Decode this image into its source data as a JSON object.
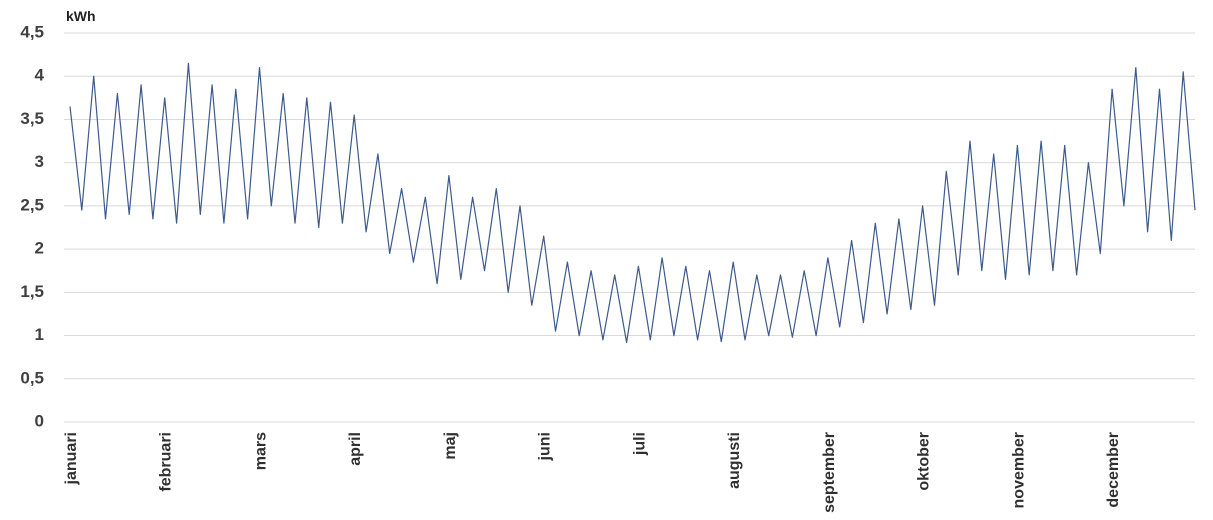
{
  "chart_data": {
    "type": "line",
    "unit_label": "kWh",
    "categories": [
      "januari",
      null,
      null,
      null,
      null,
      null,
      null,
      null,
      "februari",
      null,
      null,
      null,
      null,
      null,
      null,
      null,
      "mars",
      null,
      null,
      null,
      null,
      null,
      null,
      null,
      "april",
      null,
      null,
      null,
      null,
      null,
      null,
      null,
      "maj",
      null,
      null,
      null,
      null,
      null,
      null,
      null,
      "juni",
      null,
      null,
      null,
      null,
      null,
      null,
      null,
      "juli",
      null,
      null,
      null,
      null,
      null,
      null,
      null,
      "augusti",
      null,
      null,
      null,
      null,
      null,
      null,
      null,
      "september",
      null,
      null,
      null,
      null,
      null,
      null,
      null,
      "oktober",
      null,
      null,
      null,
      null,
      null,
      null,
      null,
      "november",
      null,
      null,
      null,
      null,
      null,
      null,
      null,
      "december",
      null,
      null,
      null,
      null,
      null,
      null,
      null
    ],
    "series": [
      {
        "color": "#3d5a8c",
        "values": [
          3.65,
          2.45,
          4.0,
          2.35,
          3.8,
          2.4,
          3.9,
          2.35,
          3.75,
          2.3,
          4.15,
          2.4,
          3.9,
          2.3,
          3.85,
          2.35,
          4.1,
          2.5,
          3.8,
          2.3,
          3.75,
          2.25,
          3.7,
          2.3,
          3.55,
          2.2,
          3.1,
          1.95,
          2.7,
          1.85,
          2.6,
          1.6,
          2.85,
          1.65,
          2.6,
          1.75,
          2.7,
          1.5,
          2.5,
          1.35,
          2.15,
          1.05,
          1.85,
          1.0,
          1.75,
          0.95,
          1.7,
          0.92,
          1.8,
          0.95,
          1.9,
          1.0,
          1.8,
          0.95,
          1.75,
          0.93,
          1.85,
          0.95,
          1.7,
          1.0,
          1.7,
          0.98,
          1.75,
          1.0,
          1.9,
          1.1,
          2.1,
          1.15,
          2.3,
          1.25,
          2.35,
          1.3,
          2.5,
          1.35,
          2.9,
          1.7,
          3.25,
          1.75,
          3.1,
          1.65,
          3.2,
          1.7,
          3.25,
          1.75,
          3.2,
          1.7,
          3.0,
          1.95,
          3.85,
          2.5,
          4.1,
          2.2,
          3.85,
          2.1,
          4.05,
          2.45
        ]
      }
    ],
    "ylim": [
      0,
      4.5
    ],
    "yticks": [
      0,
      {
        "value": 0.5,
        "label": "0,5"
      },
      1,
      {
        "value": 1.5,
        "label": "1,5"
      },
      2,
      {
        "value": 2.5,
        "label": "2,5"
      },
      3,
      {
        "value": 3.5,
        "label": "3,5"
      },
      4,
      {
        "value": 4.5,
        "label": "4,5"
      }
    ],
    "grid": true
  }
}
